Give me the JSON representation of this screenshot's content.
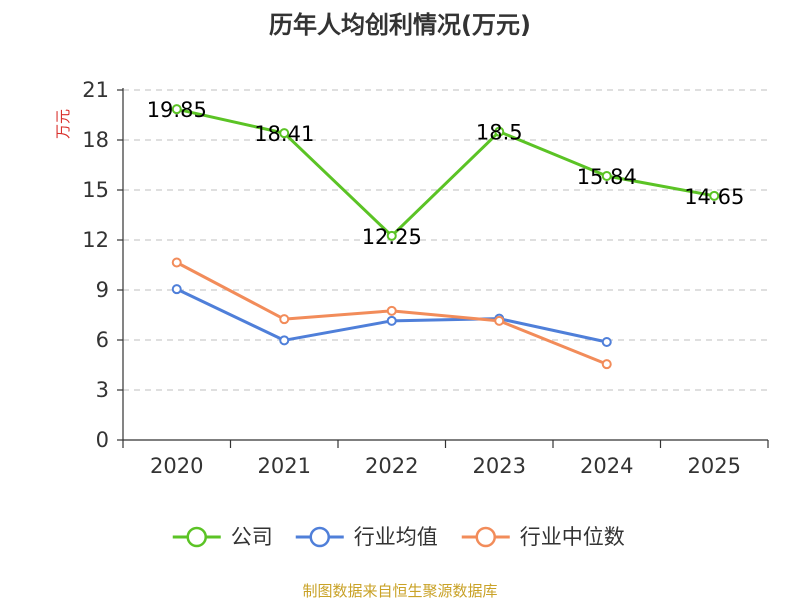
{
  "chart_data": {
    "type": "line",
    "title": "历年人均创利情况(万元)",
    "ylabel": "万元",
    "xlabel": "",
    "categories": [
      "2020",
      "2021",
      "2022",
      "2023",
      "2024",
      "2025"
    ],
    "yticks": [
      "0",
      "3",
      "6",
      "9",
      "12",
      "15",
      "18",
      "21"
    ],
    "ylim": [
      0,
      21
    ],
    "grid": true,
    "legend_position": "bottom",
    "series": [
      {
        "name": "公司",
        "color": "#5bc325",
        "values": [
          19.85,
          18.41,
          12.25,
          18.5,
          15.84,
          14.65
        ],
        "labels": [
          "19.85",
          "18.41",
          "12.25",
          "18.5",
          "15.84",
          "14.65"
        ]
      },
      {
        "name": "行业均值",
        "color": "#4f7fd9",
        "values": [
          9.05,
          5.98,
          7.15,
          7.28,
          5.88,
          null
        ]
      },
      {
        "name": "行业中位数",
        "color": "#f28c5a",
        "values": [
          10.65,
          7.25,
          7.75,
          7.15,
          4.55,
          null
        ]
      }
    ],
    "unit_color": "#d9302c",
    "source": "制图数据来自恒生聚源数据库",
    "source_color": "#c9a227"
  }
}
